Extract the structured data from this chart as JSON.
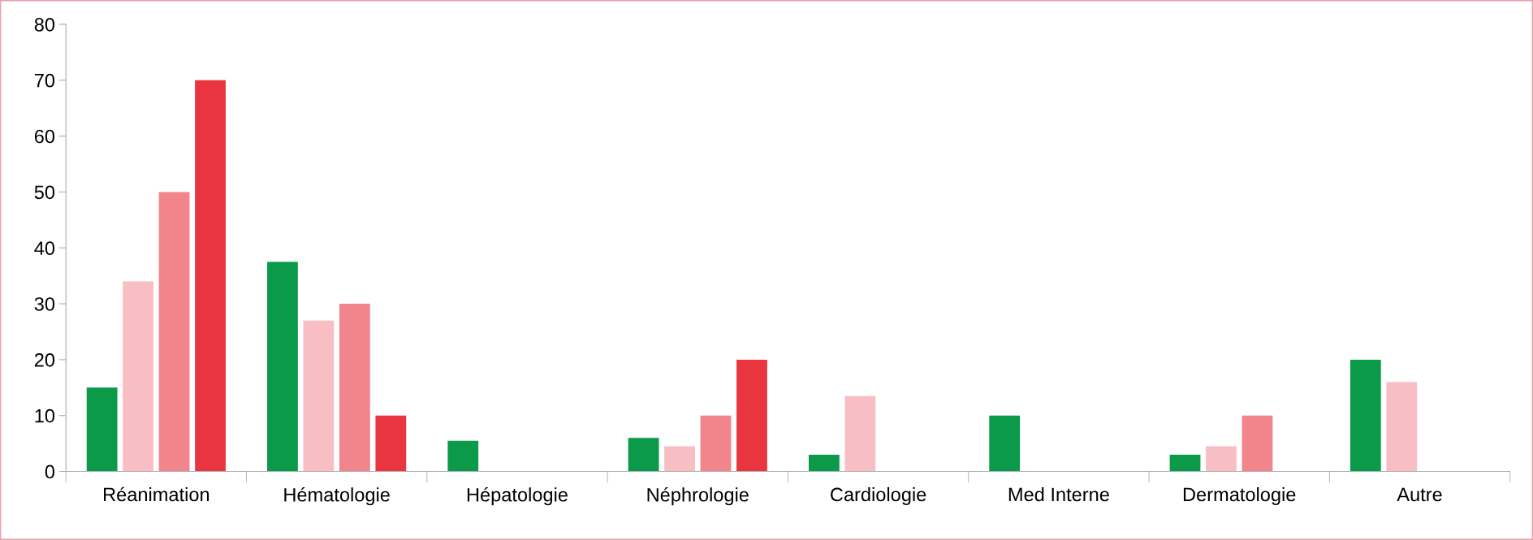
{
  "chart_data": {
    "type": "bar",
    "categories": [
      "Réanimation",
      "Hématologie",
      "Hépatologie",
      "Néphrologie",
      "Cardiologie",
      "Med Interne",
      "Dermatologie",
      "Autre"
    ],
    "series": [
      {
        "color": "#0a9a4a",
        "values": [
          15,
          37.5,
          5.5,
          6,
          3,
          10,
          3,
          20
        ]
      },
      {
        "color": "#f7bfc4",
        "values": [
          34,
          27,
          null,
          4.5,
          13.5,
          null,
          4.5,
          16
        ]
      },
      {
        "color": "#f2848c",
        "values": [
          50,
          30,
          null,
          10,
          null,
          null,
          10,
          null
        ]
      },
      {
        "color": "#e8353f",
        "values": [
          70,
          10,
          null,
          20,
          null,
          null,
          null,
          null
        ]
      }
    ],
    "ylim": [
      0,
      80
    ],
    "yticks": [
      0,
      10,
      20,
      30,
      40,
      50,
      60,
      70,
      80
    ],
    "grid": false,
    "legend": false
  }
}
